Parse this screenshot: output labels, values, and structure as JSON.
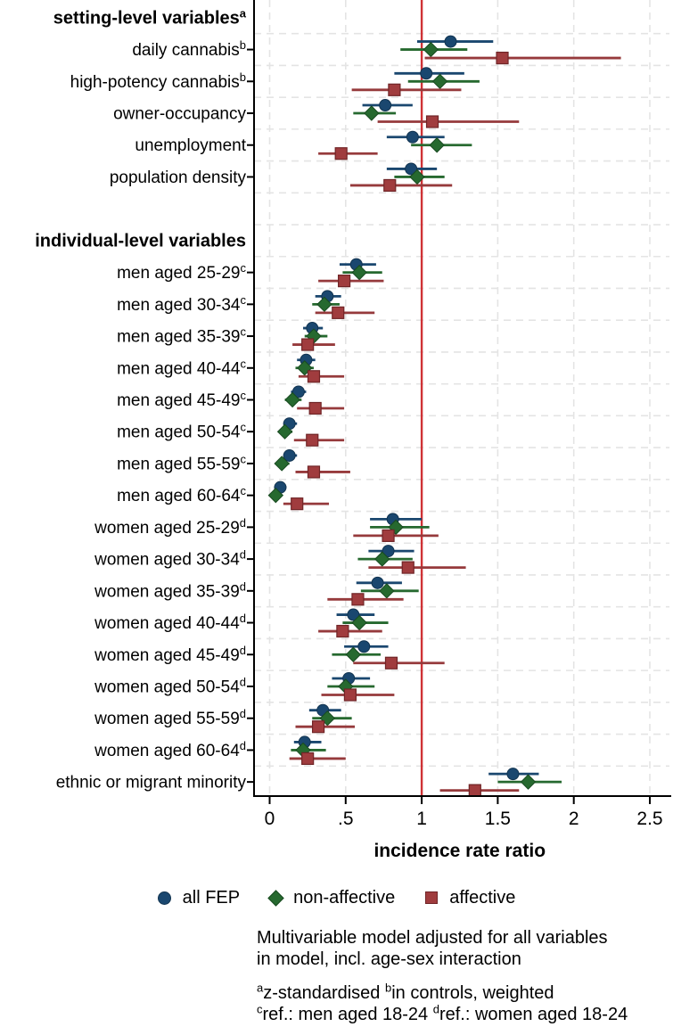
{
  "colors": {
    "all_fep": "#1a476f",
    "all_fep_edge": "#123450",
    "non_affective": "#26692f",
    "non_affective_edge": "#184a20",
    "affective_fill": "#a03c3e",
    "affective_edge": "#702527",
    "affective_line": "#963a3c",
    "refline": "#cf3236",
    "grid": "#e4e4e4",
    "axis": "#000000"
  },
  "chart_data": {
    "type": "scatter",
    "subtype": "forest-plot",
    "xlabel": "incidence rate ratio",
    "xlim": [
      0,
      2.65
    ],
    "x_ticks": [
      0,
      0.5,
      1,
      1.5,
      2,
      2.5
    ],
    "x_tick_labels": [
      "0",
      ".5",
      "1",
      "1.5",
      "2",
      "2.5"
    ],
    "refline": 1,
    "grid": "dashed",
    "legend_position": "bottom",
    "series": [
      {
        "key": "all_fep",
        "label": "all FEP",
        "marker": "circle"
      },
      {
        "key": "non_affective",
        "label": "non-affective",
        "marker": "diamond"
      },
      {
        "key": "affective",
        "label": "affective",
        "marker": "square"
      }
    ],
    "value_format": "estimate [lower CI, upper CI]",
    "rows": [
      {
        "type": "header",
        "label": "setting-level variables",
        "sup": "a"
      },
      {
        "type": "item",
        "label": "daily cannabis",
        "sup": "b",
        "all_fep": [
          1.19,
          0.97,
          1.47
        ],
        "non_affective": [
          1.06,
          0.86,
          1.3
        ],
        "affective": [
          1.53,
          1.02,
          2.31
        ]
      },
      {
        "type": "item",
        "label": "high-potency cannabis",
        "sup": "b",
        "all_fep": [
          1.03,
          0.82,
          1.28
        ],
        "non_affective": [
          1.12,
          0.91,
          1.38
        ],
        "affective": [
          0.82,
          0.54,
          1.26
        ]
      },
      {
        "type": "item",
        "label": "owner-occupancy",
        "sup": "",
        "all_fep": [
          0.76,
          0.61,
          0.94
        ],
        "non_affective": [
          0.67,
          0.55,
          0.83
        ],
        "affective": [
          1.07,
          0.71,
          1.64
        ]
      },
      {
        "type": "item",
        "label": "unemployment",
        "sup": "",
        "all_fep": [
          0.94,
          0.77,
          1.15
        ],
        "non_affective": [
          1.1,
          0.93,
          1.33
        ],
        "affective": [
          0.47,
          0.32,
          0.71
        ]
      },
      {
        "type": "item",
        "label": "population density",
        "sup": "",
        "all_fep": [
          0.93,
          0.77,
          1.1
        ],
        "non_affective": [
          0.97,
          0.82,
          1.15
        ],
        "affective": [
          0.79,
          0.53,
          1.2
        ]
      },
      {
        "type": "gap"
      },
      {
        "type": "header",
        "label": "individual-level variables",
        "sup": ""
      },
      {
        "type": "item",
        "label": "men aged 25-29",
        "sup": "c",
        "all_fep": [
          0.57,
          0.46,
          0.7
        ],
        "non_affective": [
          0.59,
          0.48,
          0.74
        ],
        "affective": [
          0.49,
          0.32,
          0.75
        ]
      },
      {
        "type": "item",
        "label": "men aged 30-34",
        "sup": "c",
        "all_fep": [
          0.38,
          0.3,
          0.47
        ],
        "non_affective": [
          0.36,
          0.28,
          0.46
        ],
        "affective": [
          0.45,
          0.3,
          0.69
        ]
      },
      {
        "type": "item",
        "label": "men aged 35-39",
        "sup": "c",
        "all_fep": [
          0.28,
          0.22,
          0.35
        ],
        "non_affective": [
          0.29,
          0.23,
          0.38
        ],
        "affective": [
          0.25,
          0.15,
          0.43
        ]
      },
      {
        "type": "item",
        "label": "men aged 40-44",
        "sup": "c",
        "all_fep": [
          0.24,
          0.18,
          0.3
        ],
        "non_affective": [
          0.23,
          0.17,
          0.29
        ],
        "affective": [
          0.29,
          0.19,
          0.49
        ]
      },
      {
        "type": "item",
        "label": "men aged 45-49",
        "sup": "c",
        "all_fep": [
          0.19,
          0.14,
          0.24
        ],
        "non_affective": [
          0.15,
          0.1,
          0.21
        ],
        "affective": [
          0.3,
          0.18,
          0.49
        ]
      },
      {
        "type": "item",
        "label": "men aged 50-54",
        "sup": "c",
        "all_fep": [
          0.13,
          0.09,
          0.18
        ],
        "non_affective": [
          0.1,
          0.06,
          0.15
        ],
        "affective": [
          0.28,
          0.16,
          0.49
        ]
      },
      {
        "type": "item",
        "label": "men aged 55-59",
        "sup": "c",
        "all_fep": [
          0.13,
          0.09,
          0.18
        ],
        "non_affective": [
          0.08,
          0.04,
          0.13
        ],
        "affective": [
          0.29,
          0.17,
          0.53
        ]
      },
      {
        "type": "item",
        "label": "men aged 60-64",
        "sup": "c",
        "all_fep": [
          0.07,
          0.04,
          0.11
        ],
        "non_affective": [
          0.04,
          0.02,
          0.08
        ],
        "affective": [
          0.18,
          0.09,
          0.39
        ]
      },
      {
        "type": "item",
        "label": "women aged 25-29",
        "sup": "d",
        "all_fep": [
          0.81,
          0.66,
          1.0
        ],
        "non_affective": [
          0.83,
          0.66,
          1.05
        ],
        "affective": [
          0.78,
          0.55,
          1.11
        ]
      },
      {
        "type": "item",
        "label": "women aged 30-34",
        "sup": "d",
        "all_fep": [
          0.78,
          0.65,
          0.95
        ],
        "non_affective": [
          0.74,
          0.58,
          0.94
        ],
        "affective": [
          0.91,
          0.65,
          1.29
        ]
      },
      {
        "type": "item",
        "label": "women aged 35-39",
        "sup": "d",
        "all_fep": [
          0.71,
          0.57,
          0.87
        ],
        "non_affective": [
          0.77,
          0.6,
          0.98
        ],
        "affective": [
          0.58,
          0.38,
          0.88
        ]
      },
      {
        "type": "item",
        "label": "women aged 40-44",
        "sup": "d",
        "all_fep": [
          0.55,
          0.44,
          0.69
        ],
        "non_affective": [
          0.59,
          0.48,
          0.78
        ],
        "affective": [
          0.48,
          0.32,
          0.74
        ]
      },
      {
        "type": "item",
        "label": "women aged 45-49",
        "sup": "d",
        "all_fep": [
          0.62,
          0.49,
          0.78
        ],
        "non_affective": [
          0.55,
          0.41,
          0.73
        ],
        "affective": [
          0.8,
          0.55,
          1.15
        ]
      },
      {
        "type": "item",
        "label": "women aged 50-54",
        "sup": "d",
        "all_fep": [
          0.52,
          0.41,
          0.66
        ],
        "non_affective": [
          0.5,
          0.38,
          0.69
        ],
        "affective": [
          0.53,
          0.34,
          0.82
        ]
      },
      {
        "type": "item",
        "label": "women aged 55-59",
        "sup": "d",
        "all_fep": [
          0.35,
          0.26,
          0.47
        ],
        "non_affective": [
          0.38,
          0.28,
          0.54
        ],
        "affective": [
          0.32,
          0.17,
          0.56
        ]
      },
      {
        "type": "item",
        "label": "women aged 60-64",
        "sup": "d",
        "all_fep": [
          0.23,
          0.16,
          0.34
        ],
        "non_affective": [
          0.22,
          0.14,
          0.37
        ],
        "affective": [
          0.25,
          0.13,
          0.5
        ]
      },
      {
        "type": "item",
        "label": "ethnic or migrant minority",
        "sup": "",
        "all_fep": [
          1.6,
          1.44,
          1.77
        ],
        "non_affective": [
          1.7,
          1.5,
          1.92
        ],
        "affective": [
          1.35,
          1.12,
          1.64
        ]
      }
    ]
  },
  "notes": {
    "model": [
      "Multivariable model adjusted for all variables",
      "in model, incl. age-sex interaction"
    ],
    "footnote_ab": [
      {
        "s": "a"
      },
      {
        "t": "z-standardised "
      },
      {
        "s": "b"
      },
      {
        "t": "in controls, weighted"
      }
    ],
    "footnote_cd": [
      {
        "s": "c"
      },
      {
        "t": "ref.: men aged 18-24 "
      },
      {
        "s": "d"
      },
      {
        "t": "ref.: women aged 18-24"
      }
    ]
  }
}
